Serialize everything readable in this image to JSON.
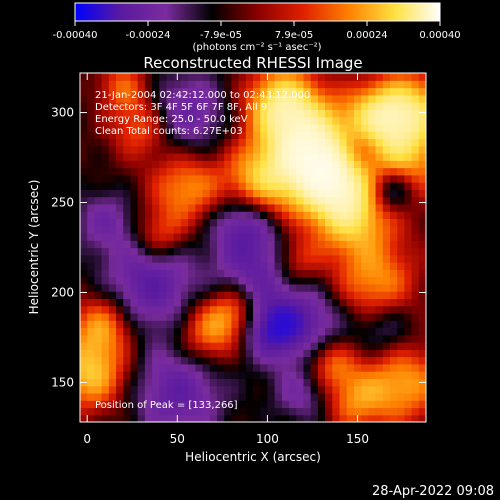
{
  "chart_data": {
    "type": "heatmap",
    "title": "Reconstructed RHESSI Image",
    "info_lines": [
      "21-Jan-2004 02:42:12.000 to 02:43:12.000",
      "Detectors: 3F 4F 5F 6F 7F 8F, All 9",
      "Energy Range: 25.0 - 50.0 keV",
      "Clean     Total counts: 6.27E+03"
    ],
    "peak_label": "Position of Peak = [133,266]",
    "peak": [
      133,
      266
    ],
    "xlabel": "Heliocentric X (arcsec)",
    "ylabel": "Heliocentric Y (arcsec)",
    "xlim": [
      -4,
      188
    ],
    "ylim": [
      128,
      322
    ],
    "xticks": [
      0,
      50,
      100,
      150
    ],
    "yticks": [
      150,
      200,
      250,
      300
    ],
    "colorbar": {
      "range": [
        -0.0004,
        0.0004
      ],
      "tick_labels": [
        "-0.00040",
        "-0.00024",
        "-7.9e-05",
        "7.9e-05",
        "0.00024",
        "0.00040"
      ],
      "unit_label": "(photons cm⁻² s⁻¹ asec⁻²)",
      "colors": [
        "#0000ff",
        "#5a1aa0",
        "#7a2c9e",
        "#000000",
        "#8a0000",
        "#e02000",
        "#ff8000",
        "#ffe040",
        "#ffffff"
      ]
    },
    "grid": false,
    "hotspots": [
      {
        "x": 133,
        "y": 266,
        "amp": 1.0,
        "r": 16
      },
      {
        "x": 121,
        "y": 283,
        "amp": 0.85,
        "r": 18
      },
      {
        "x": 108,
        "y": 306,
        "amp": 0.8,
        "r": 14
      },
      {
        "x": 147,
        "y": 243,
        "amp": 0.7,
        "r": 16
      },
      {
        "x": 172,
        "y": 275,
        "amp": 0.75,
        "r": 18
      },
      {
        "x": 180,
        "y": 303,
        "amp": 0.7,
        "r": 14
      },
      {
        "x": 160,
        "y": 300,
        "amp": 0.55,
        "r": 12
      },
      {
        "x": 95,
        "y": 262,
        "amp": 0.6,
        "r": 14
      },
      {
        "x": 55,
        "y": 258,
        "amp": 0.55,
        "r": 14
      },
      {
        "x": 40,
        "y": 232,
        "amp": 0.4,
        "r": 10
      },
      {
        "x": 160,
        "y": 205,
        "amp": 0.55,
        "r": 16
      },
      {
        "x": 175,
        "y": 150,
        "amp": 0.6,
        "r": 16
      },
      {
        "x": 148,
        "y": 140,
        "amp": 0.45,
        "r": 12
      },
      {
        "x": 2,
        "y": 155,
        "amp": 0.7,
        "r": 14
      },
      {
        "x": 8,
        "y": 182,
        "amp": 0.55,
        "r": 12
      },
      {
        "x": 68,
        "y": 178,
        "amp": 0.55,
        "r": 12
      },
      {
        "x": 82,
        "y": 190,
        "amp": 0.45,
        "r": 10
      },
      {
        "x": 135,
        "y": 160,
        "amp": 0.45,
        "r": 10
      },
      {
        "x": 115,
        "y": 218,
        "amp": 0.4,
        "r": 10
      },
      {
        "x": 30,
        "y": 292,
        "amp": 0.45,
        "r": 12
      },
      {
        "x": 20,
        "y": 315,
        "amp": 0.4,
        "r": 10
      },
      {
        "x": 55,
        "y": 300,
        "amp": -0.45,
        "r": 16
      },
      {
        "x": 35,
        "y": 205,
        "amp": -0.55,
        "r": 18
      },
      {
        "x": 50,
        "y": 145,
        "amp": -0.5,
        "r": 18
      },
      {
        "x": 103,
        "y": 180,
        "amp": -0.7,
        "r": 12
      },
      {
        "x": 168,
        "y": 258,
        "amp": -0.75,
        "r": 10
      },
      {
        "x": 150,
        "y": 278,
        "amp": -0.55,
        "r": 10
      },
      {
        "x": 95,
        "y": 215,
        "amp": -0.5,
        "r": 16
      },
      {
        "x": 125,
        "y": 185,
        "amp": -0.4,
        "r": 14
      },
      {
        "x": 165,
        "y": 180,
        "amp": -0.35,
        "r": 12
      },
      {
        "x": 85,
        "y": 240,
        "amp": -0.45,
        "r": 12
      },
      {
        "x": 10,
        "y": 240,
        "amp": -0.35,
        "r": 12
      },
      {
        "x": 120,
        "y": 145,
        "amp": -0.35,
        "r": 12
      }
    ]
  },
  "footer": {
    "timestamp": "28-Apr-2022 09:08"
  }
}
